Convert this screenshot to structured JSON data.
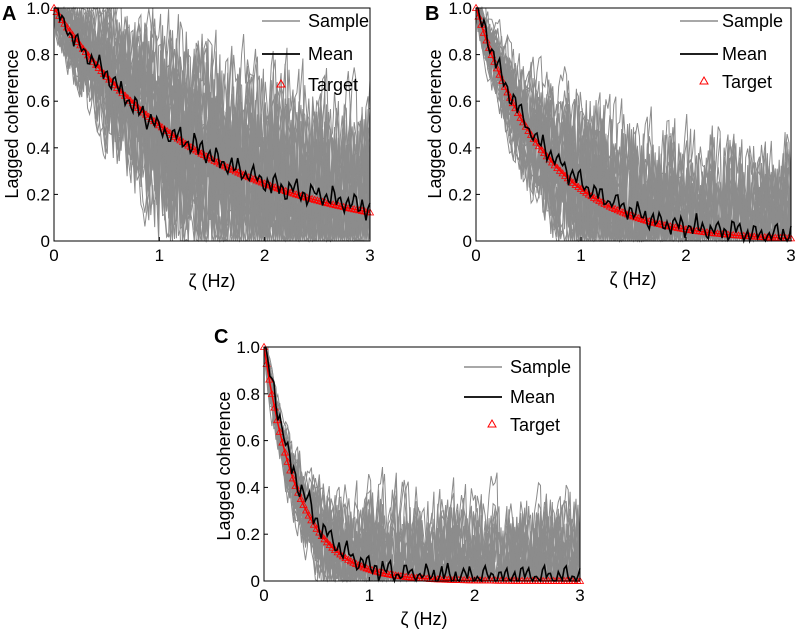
{
  "figure": {
    "colors": {
      "sample": "#8c8c8c",
      "mean": "#000000",
      "target": "#ff0000",
      "axis": "#000000",
      "background": "#ffffff"
    }
  },
  "chart_data": [
    {
      "type": "line",
      "panel_label": "A",
      "xlabel": "ζ (Hz)",
      "ylabel": "Lagged coherence",
      "xlim": [
        0,
        3
      ],
      "ylim": [
        0,
        1
      ],
      "xticks": [
        "0",
        "1",
        "2",
        "3"
      ],
      "yticks": [
        "0",
        "0.2",
        "0.4",
        "0.6",
        "0.8",
        "1.0"
      ],
      "legend": [
        "Sample",
        "Mean",
        "Target"
      ],
      "legend_position": "top-right",
      "target_decay_rate": 0.7,
      "series": [
        {
          "name": "Target",
          "x": [
            0,
            0.25,
            0.5,
            0.75,
            1.0,
            1.25,
            1.5,
            1.75,
            2.0,
            2.25,
            2.5,
            2.75,
            3.0
          ],
          "values": [
            1.0,
            0.84,
            0.7,
            0.59,
            0.5,
            0.42,
            0.35,
            0.29,
            0.25,
            0.21,
            0.17,
            0.15,
            0.12
          ]
        },
        {
          "name": "Mean",
          "x": [
            0,
            0.25,
            0.5,
            0.75,
            1.0,
            1.25,
            1.5,
            1.75,
            2.0,
            2.25,
            2.5,
            2.75,
            3.0
          ],
          "values": [
            1.0,
            0.83,
            0.71,
            0.58,
            0.48,
            0.43,
            0.36,
            0.31,
            0.25,
            0.22,
            0.2,
            0.17,
            0.14
          ]
        }
      ],
      "sample_count": 30,
      "sample_spread": 0.35
    },
    {
      "type": "line",
      "panel_label": "B",
      "xlabel": "ζ (Hz)",
      "ylabel": "Lagged coherence",
      "xlim": [
        0,
        3
      ],
      "ylim": [
        0,
        1
      ],
      "xticks": [
        "0",
        "1",
        "2",
        "3"
      ],
      "yticks": [
        "0",
        "0.2",
        "0.4",
        "0.6",
        "0.8",
        "1.0"
      ],
      "legend": [
        "Sample",
        "Mean",
        "Target"
      ],
      "legend_position": "top-right",
      "target_decay_rate": 1.5,
      "series": [
        {
          "name": "Target",
          "x": [
            0,
            0.25,
            0.5,
            0.75,
            1.0,
            1.25,
            1.5,
            1.75,
            2.0,
            2.25,
            2.5,
            2.75,
            3.0
          ],
          "values": [
            1.0,
            0.69,
            0.47,
            0.32,
            0.22,
            0.15,
            0.11,
            0.07,
            0.05,
            0.04,
            0.03,
            0.02,
            0.01
          ]
        },
        {
          "name": "Mean",
          "x": [
            0,
            0.25,
            0.5,
            0.75,
            1.0,
            1.25,
            1.5,
            1.75,
            2.0,
            2.25,
            2.5,
            2.75,
            3.0
          ],
          "values": [
            1.0,
            0.7,
            0.48,
            0.35,
            0.25,
            0.18,
            0.13,
            0.08,
            0.06,
            0.05,
            0.04,
            0.03,
            0.02
          ]
        }
      ],
      "sample_count": 30,
      "sample_spread": 0.3
    },
    {
      "type": "line",
      "panel_label": "C",
      "xlabel": "ζ (Hz)",
      "ylabel": "Lagged coherence",
      "xlim": [
        0,
        3
      ],
      "ylim": [
        0,
        1
      ],
      "xticks": [
        "0",
        "1",
        "2",
        "3"
      ],
      "yticks": [
        "0",
        "0.2",
        "0.4",
        "0.6",
        "0.8",
        "1.0"
      ],
      "legend": [
        "Sample",
        "Mean",
        "Target"
      ],
      "legend_position": "top-right",
      "target_decay_rate": 3.0,
      "series": [
        {
          "name": "Target",
          "x": [
            0,
            0.25,
            0.5,
            0.75,
            1.0,
            1.25,
            1.5,
            1.75,
            2.0,
            2.25,
            2.5,
            2.75,
            3.0
          ],
          "values": [
            1.0,
            0.47,
            0.22,
            0.11,
            0.05,
            0.02,
            0.01,
            0.01,
            0.0,
            0.0,
            0.0,
            0.0,
            0.0
          ]
        },
        {
          "name": "Mean",
          "x": [
            0,
            0.25,
            0.5,
            0.75,
            1.0,
            1.25,
            1.5,
            1.75,
            2.0,
            2.25,
            2.5,
            2.75,
            3.0
          ],
          "values": [
            1.0,
            0.5,
            0.25,
            0.13,
            0.06,
            0.04,
            0.03,
            0.02,
            0.02,
            0.02,
            0.02,
            0.02,
            0.02
          ]
        }
      ],
      "sample_count": 30,
      "sample_spread": 0.25
    }
  ]
}
